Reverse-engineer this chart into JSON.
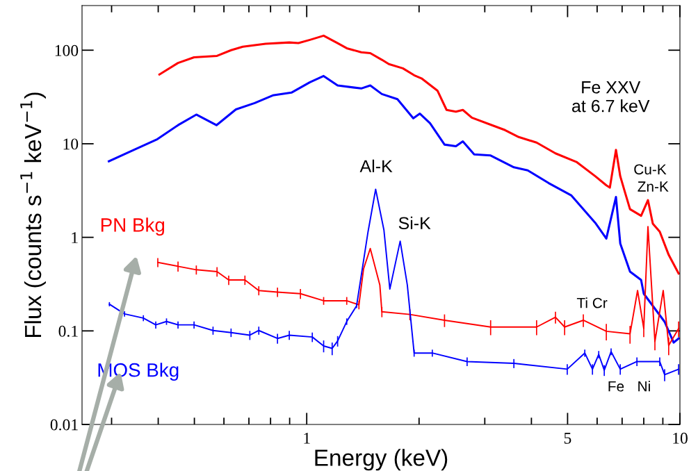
{
  "chart_data": {
    "type": "line",
    "xlabel": "Energy (keV)",
    "ylabel": "Flux (counts s$^{−1}$ keV$^{−1}$)",
    "log": "xy",
    "xlim": [
      0.25,
      10
    ],
    "ylim": [
      0.01,
      300
    ],
    "xticks": [
      {
        "value": 0.3,
        "label": null
      },
      {
        "value": 0.4,
        "label": null
      },
      {
        "value": 0.5,
        "label": null
      },
      {
        "value": 0.6,
        "label": null
      },
      {
        "value": 0.7,
        "label": null
      },
      {
        "value": 0.8,
        "label": null
      },
      {
        "value": 0.9,
        "label": null
      },
      1,
      {
        "value": 2,
        "label": null
      },
      {
        "value": 3,
        "label": null
      },
      {
        "value": 4,
        "label": null
      },
      5,
      {
        "value": 6,
        "label": null
      },
      {
        "value": 7,
        "label": null
      },
      {
        "value": 8,
        "label": null
      },
      {
        "value": 9,
        "label": null
      },
      10
    ],
    "yticks": [
      0.01,
      0.1,
      1,
      10,
      100
    ],
    "grid": false,
    "legend": false,
    "marker": "none",
    "series": [
      {
        "color": "#ff0000",
        "x": [
          0.403,
          0.452,
          0.499,
          0.575,
          0.627,
          0.674,
          0.776,
          0.898,
          0.95,
          1.02,
          1.11,
          1.21,
          1.28,
          1.4,
          1.48,
          1.59,
          1.66,
          1.81,
          1.94,
          2.03,
          2.24,
          2.37,
          2.51,
          2.62,
          2.77,
          3.11,
          3.4,
          3.7,
          4.13,
          4.64,
          5.28,
          5.93,
          6.35,
          6.49,
          6.74,
          6.92,
          7.13,
          7.35,
          7.87,
          8.21,
          8.46,
          8.83,
          9.33,
          9.92
        ],
        "values": [
          55,
          73,
          84,
          87,
          100,
          109,
          117,
          121,
          119,
          129,
          143,
          119,
          105,
          95,
          93,
          79,
          71,
          64,
          54,
          50,
          37,
          23,
          22,
          23,
          19,
          16,
          14,
          11.8,
          10.3,
          7.9,
          6.4,
          4.5,
          3.6,
          3.4,
          8.6,
          4.5,
          3.0,
          2.0,
          1.7,
          2.5,
          1.4,
          1.15,
          0.65,
          0.41
        ]
      },
      {
        "color": "#0000ff",
        "x": [
          0.295,
          0.335,
          0.398,
          0.452,
          0.506,
          0.573,
          0.646,
          0.725,
          0.811,
          0.91,
          1.02,
          1.11,
          1.21,
          1.4,
          1.48,
          1.59,
          1.75,
          1.93,
          2.01,
          2.14,
          2.34,
          2.51,
          2.62,
          2.81,
          3.11,
          3.59,
          3.91,
          4.45,
          5.12,
          5.93,
          6.35,
          6.74,
          6.92,
          7.35,
          7.87,
          8.0,
          9.1,
          9.62,
          9.92
        ],
        "values": [
          6.5,
          8.2,
          11.2,
          15.8,
          20.5,
          15.8,
          23.3,
          27.2,
          32.9,
          35.2,
          45.5,
          53,
          42,
          39,
          42,
          34,
          30,
          18.7,
          21,
          16.6,
          9.8,
          9.4,
          10.6,
          7.7,
          7.5,
          5.6,
          5.2,
          3.8,
          2.8,
          1.43,
          0.97,
          2.7,
          0.86,
          0.43,
          0.35,
          0.25,
          0.125,
          0.075,
          0.083
        ]
      },
      {
        "name": "PN Bkg",
        "color": "#ff0000",
        "x": [
          0.399,
          0.452,
          0.506,
          0.575,
          0.618,
          0.683,
          0.744,
          0.835,
          0.962,
          1.11,
          1.28,
          1.38,
          1.42,
          1.48,
          1.57,
          1.59,
          1.89,
          2.34,
          3.11,
          4.13,
          4.64,
          4.91,
          5.51,
          6.35,
          7.35,
          7.7,
          8.0,
          8.21,
          8.57,
          9.02,
          9.33,
          9.92
        ],
        "values": [
          0.54,
          0.49,
          0.45,
          0.43,
          0.35,
          0.35,
          0.27,
          0.26,
          0.25,
          0.21,
          0.21,
          0.19,
          0.46,
          0.76,
          0.31,
          0.16,
          0.15,
          0.13,
          0.11,
          0.11,
          0.14,
          0.11,
          0.13,
          0.099,
          0.093,
          0.27,
          0.106,
          1.3,
          0.077,
          0.27,
          0.07,
          0.106
        ],
        "errors": [
          0.06,
          0.06,
          0.05,
          0.05,
          0.04,
          0.04,
          0.03,
          0.03,
          0.03,
          0.02,
          0.02,
          0.02,
          null,
          null,
          null,
          0.02,
          0.02,
          0.02,
          0.02,
          0.02,
          0.02,
          0.02,
          0.02,
          0.02,
          0.02,
          null,
          0.02,
          null,
          0.015,
          null,
          0.015,
          0.02
        ]
      },
      {
        "name": "MOS Bkg",
        "color": "#0000ff",
        "x": [
          0.296,
          0.325,
          0.365,
          0.394,
          0.421,
          0.452,
          0.499,
          0.561,
          0.627,
          0.704,
          0.744,
          0.835,
          0.898,
          1.035,
          1.11,
          1.17,
          1.21,
          1.28,
          1.36,
          1.46,
          1.53,
          1.61,
          1.67,
          1.78,
          1.86,
          1.94,
          2.17,
          2.69,
          3.59,
          4.99,
          5.56,
          5.83,
          6.06,
          6.27,
          6.54,
          6.92,
          7.67,
          8.83,
          9.1,
          9.92
        ],
        "values": [
          0.193,
          0.152,
          0.137,
          0.116,
          0.126,
          0.116,
          0.116,
          0.101,
          0.096,
          0.09,
          0.101,
          0.083,
          0.09,
          0.086,
          0.069,
          0.065,
          0.078,
          0.126,
          0.185,
          1.15,
          3.26,
          1.2,
          0.28,
          0.91,
          0.31,
          0.058,
          0.058,
          0.047,
          0.045,
          0.039,
          0.058,
          0.039,
          0.056,
          0.038,
          0.06,
          0.039,
          0.047,
          0.047,
          0.034,
          0.039
        ],
        "errors": [
          0.01,
          0.01,
          0.01,
          0.01,
          0.01,
          0.01,
          0.01,
          0.01,
          0.01,
          0.01,
          0.01,
          0.01,
          0.01,
          0.01,
          0.01,
          0.01,
          0.01,
          0.01,
          0.01,
          null,
          null,
          null,
          null,
          null,
          null,
          0.005,
          0.005,
          0.005,
          0.005,
          0.005,
          0.005,
          0.005,
          0.005,
          0.005,
          0.005,
          0.005,
          0.005,
          0.005,
          0.005,
          0.005
        ]
      }
    ],
    "annotations": [
      "Fe XXV\nat 6.7 keV",
      "Al-K",
      "Si-K",
      "Cu-K",
      "Zn-K",
      "Ti Cr",
      "Fe",
      "Ni"
    ]
  }
}
